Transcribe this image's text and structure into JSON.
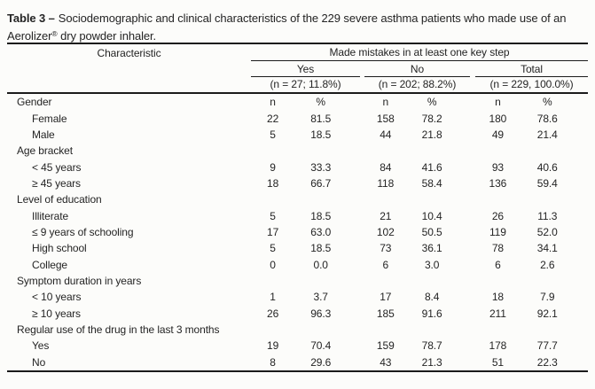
{
  "caption": {
    "prefix": "Table 3 –",
    "line1": "Sociodemographic and clinical characteristics of the 229 severe asthma patients who made use of an",
    "line2_product": "Aerolizer",
    "line2_reg": "®",
    "line2_rest": " dry powder inhaler."
  },
  "table": {
    "header": {
      "characteristic": "Characteristic",
      "spanner": "Made mistakes in at least one key step",
      "groups": [
        {
          "label": "Yes",
          "n_label": "(n = 27; 11.8%)"
        },
        {
          "label": "No",
          "n_label": "(n = 202; 88.2%)"
        },
        {
          "label": "Total",
          "n_label": "(n = 229, 100.0%)"
        }
      ]
    },
    "rows": [
      {
        "label": "Gender",
        "indent": false,
        "values": [
          "n",
          "%",
          "n",
          "%",
          "n",
          "%"
        ]
      },
      {
        "label": "Female",
        "indent": true,
        "values": [
          "22",
          "81.5",
          "158",
          "78.2",
          "180",
          "78.6"
        ]
      },
      {
        "label": "Male",
        "indent": true,
        "values": [
          "5",
          "18.5",
          "44",
          "21.8",
          "49",
          "21.4"
        ]
      },
      {
        "label": "Age bracket",
        "indent": false,
        "values": [
          "",
          "",
          "",
          "",
          "",
          ""
        ]
      },
      {
        "label": "< 45 years",
        "indent": true,
        "values": [
          "9",
          "33.3",
          "84",
          "41.6",
          "93",
          "40.6"
        ]
      },
      {
        "label": "≥ 45 years",
        "indent": true,
        "values": [
          "18",
          "66.7",
          "118",
          "58.4",
          "136",
          "59.4"
        ]
      },
      {
        "label": "Level of education",
        "indent": false,
        "values": [
          "",
          "",
          "",
          "",
          "",
          ""
        ]
      },
      {
        "label": "Illiterate",
        "indent": true,
        "values": [
          "5",
          "18.5",
          "21",
          "10.4",
          "26",
          "11.3"
        ]
      },
      {
        "label": "≤ 9 years of schooling",
        "indent": true,
        "values": [
          "17",
          "63.0",
          "102",
          "50.5",
          "119",
          "52.0"
        ]
      },
      {
        "label": "High school",
        "indent": true,
        "values": [
          "5",
          "18.5",
          "73",
          "36.1",
          "78",
          "34.1"
        ]
      },
      {
        "label": "College",
        "indent": true,
        "values": [
          "0",
          "0.0",
          "6",
          "3.0",
          "6",
          "2.6"
        ]
      },
      {
        "label": "Symptom duration in years",
        "indent": false,
        "values": [
          "",
          "",
          "",
          "",
          "",
          ""
        ]
      },
      {
        "label": "< 10 years",
        "indent": true,
        "values": [
          "1",
          "3.7",
          "17",
          "8.4",
          "18",
          "7.9"
        ]
      },
      {
        "label": "≥ 10 years",
        "indent": true,
        "values": [
          "26",
          "96.3",
          "185",
          "91.6",
          "211",
          "92.1"
        ]
      },
      {
        "label": "Regular use of the drug in the last 3 months",
        "indent": false,
        "values": [
          "",
          "",
          "",
          "",
          "",
          ""
        ]
      },
      {
        "label": "Yes",
        "indent": true,
        "values": [
          "19",
          "70.4",
          "159",
          "78.7",
          "178",
          "77.7"
        ]
      },
      {
        "label": "No",
        "indent": true,
        "values": [
          "8",
          "29.6",
          "43",
          "21.3",
          "51",
          "22.3"
        ]
      }
    ]
  }
}
